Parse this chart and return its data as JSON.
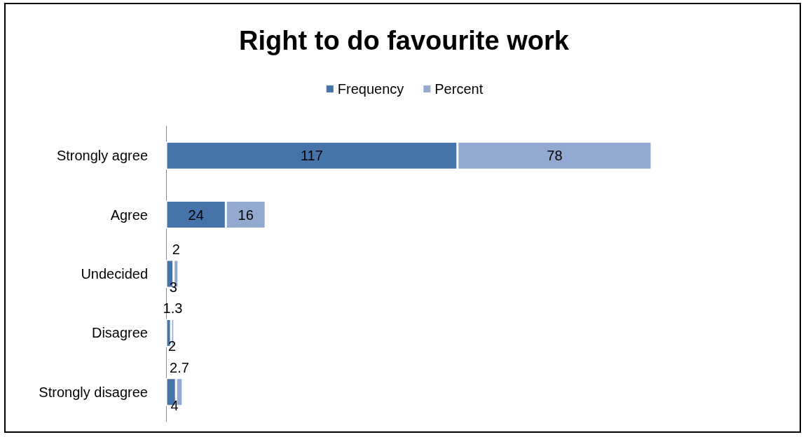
{
  "chart_data": {
    "type": "bar",
    "title": "Right to do favourite work",
    "orientation": "horizontal",
    "stacked": true,
    "data_labels": true,
    "legend": "top",
    "categories": [
      "Strongly agree",
      "Agree",
      "Undecided",
      "Disagree",
      "Strongly disagree"
    ],
    "series": [
      {
        "name": "Frequency",
        "color": "#4674aa",
        "values": [
          117,
          24,
          3,
          2,
          4
        ]
      },
      {
        "name": "Percent",
        "color": "#93a9d1",
        "values": [
          78,
          16,
          2,
          1.3,
          2.7
        ]
      }
    ]
  }
}
